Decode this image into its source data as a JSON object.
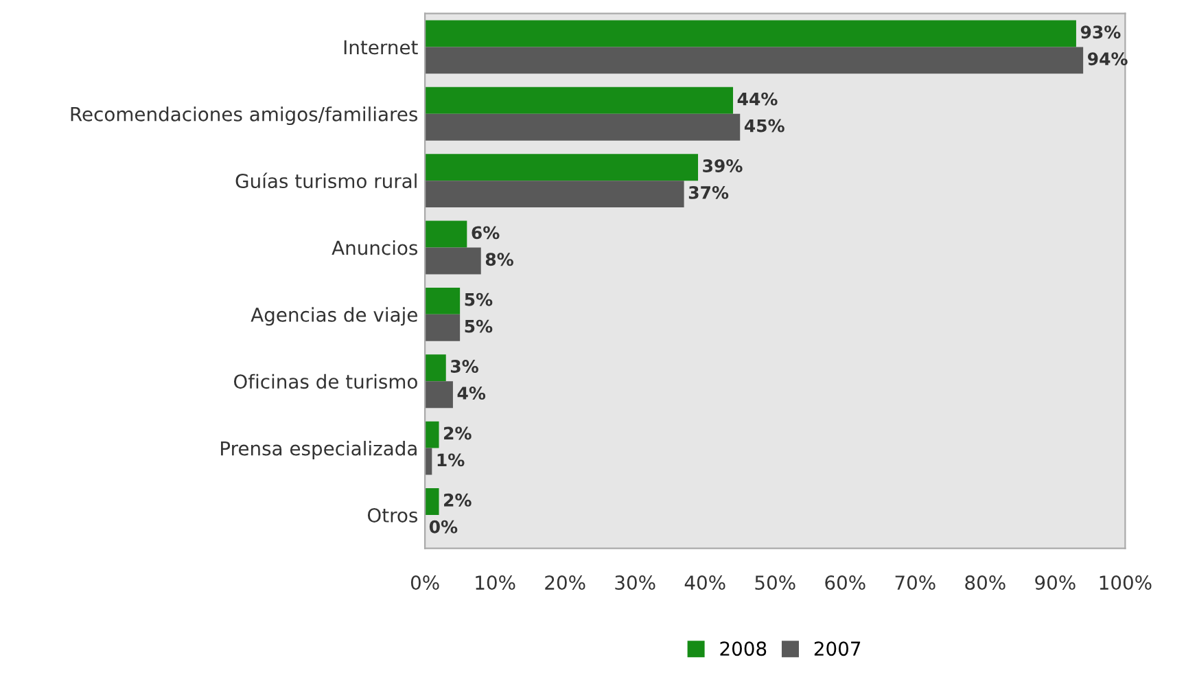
{
  "chart_data": {
    "type": "bar",
    "orientation": "horizontal",
    "categories": [
      "Internet",
      "Recomendaciones amigos/familiares",
      "Guías turismo rural",
      "Anuncios",
      "Agencias de viaje",
      "Oficinas de turismo",
      "Prensa especializada",
      "Otros"
    ],
    "series": [
      {
        "name": "2008",
        "color": "#168c16",
        "values": [
          93,
          44,
          39,
          6,
          5,
          3,
          2,
          2
        ],
        "value_labels": [
          "93%",
          "44%",
          "39%",
          "6%",
          "5%",
          "3%",
          "2%",
          "2%"
        ]
      },
      {
        "name": "2007",
        "color": "#595959",
        "values": [
          94,
          45,
          37,
          8,
          5,
          4,
          1,
          0
        ],
        "value_labels": [
          "94%",
          "45%",
          "37%",
          "8%",
          "5%",
          "4%",
          "1%",
          "0%"
        ]
      }
    ],
    "xlim": [
      0,
      100
    ],
    "xticks": [
      {
        "value": 0,
        "label": "0%"
      },
      {
        "value": 10,
        "label": "10%"
      },
      {
        "value": 20,
        "label": "20%"
      },
      {
        "value": 30,
        "label": "30%"
      },
      {
        "value": 40,
        "label": "40%"
      },
      {
        "value": 50,
        "label": "50%"
      },
      {
        "value": 60,
        "label": "60%"
      },
      {
        "value": 70,
        "label": "70%"
      },
      {
        "value": 80,
        "label": "80%"
      },
      {
        "value": 90,
        "label": "90%"
      },
      {
        "value": 100,
        "label": "100%"
      }
    ],
    "grid": false,
    "legend": "bottom"
  }
}
